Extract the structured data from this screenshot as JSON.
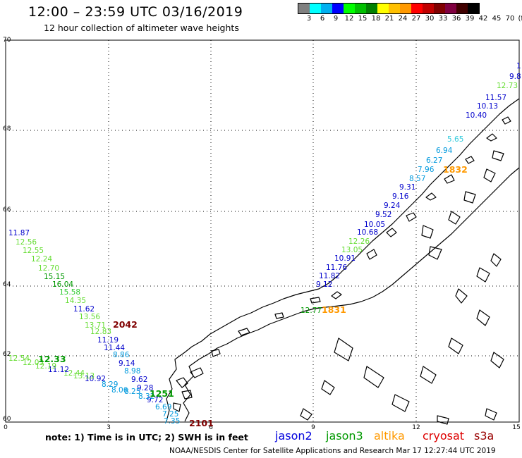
{
  "header": {
    "title": "12:00 – 23:59 UTC 03/16/2019",
    "subtitle": "12 hour collection of altimeter wave heights"
  },
  "color_scale": {
    "labels": [
      "3",
      "6",
      "9",
      "12",
      "15",
      "18",
      "21",
      "24",
      "27",
      "30",
      "33",
      "36",
      "39",
      "42",
      "45",
      "70",
      "(ft)"
    ],
    "colors": [
      "#808080",
      "#00ffff",
      "#00b0f0",
      "#0000ff",
      "#00ff00",
      "#00c000",
      "#008000",
      "#ffff00",
      "#ffc000",
      "#ff9900",
      "#ff0000",
      "#c00000",
      "#800000",
      "#800040",
      "#400000",
      "#000000"
    ]
  },
  "axes": {
    "lat_labels": [
      "70",
      "68",
      "66",
      "64",
      "62",
      "60"
    ],
    "lon_labels": [
      "0",
      "3",
      "6",
      "9",
      "12",
      "15"
    ]
  },
  "observations": [
    {
      "text": "11.87",
      "color": "#0000cc"
    },
    {
      "text": "12.56",
      "color": "#66dd33"
    },
    {
      "text": "12.55",
      "color": "#66dd33"
    },
    {
      "text": "12.24",
      "color": "#66dd33"
    },
    {
      "text": "12.70",
      "color": "#66dd33"
    },
    {
      "text": "15.15",
      "color": "#009900"
    },
    {
      "text": "16.04",
      "color": "#009900"
    },
    {
      "text": "15.58",
      "color": "#33cc33"
    },
    {
      "text": "14.35",
      "color": "#66dd33"
    },
    {
      "text": "11.62",
      "color": "#0000cc"
    },
    {
      "text": "13.56",
      "color": "#66dd33"
    },
    {
      "text": "13.71",
      "color": "#66dd33"
    },
    {
      "text": "2042",
      "color": "#800000"
    },
    {
      "text": "12.83",
      "color": "#66dd33"
    },
    {
      "text": "11.19",
      "color": "#0000cc"
    },
    {
      "text": "11.44",
      "color": "#0000cc"
    },
    {
      "text": "8.86",
      "color": "#0099dd"
    },
    {
      "text": "9.14",
      "color": "#0000cc"
    },
    {
      "text": "8.98",
      "color": "#0099dd"
    },
    {
      "text": "9.62",
      "color": "#0000cc"
    },
    {
      "text": "9.28",
      "color": "#0000cc"
    },
    {
      "text": "9.72",
      "color": "#0000cc"
    },
    {
      "text": "8.29",
      "color": "#0099dd"
    },
    {
      "text": "8.06",
      "color": "#0099dd"
    },
    {
      "text": "8.25",
      "color": "#0099dd"
    },
    {
      "text": "8.32",
      "color": "#0099dd"
    },
    {
      "text": "1251",
      "color": "#009900"
    },
    {
      "text": "6.69",
      "color": "#0099dd"
    },
    {
      "text": "7.25",
      "color": "#0099dd"
    },
    {
      "text": "7.35",
      "color": "#0099dd"
    },
    {
      "text": "2101",
      "color": "#800000"
    },
    {
      "text": "10.92",
      "color": "#0000cc"
    },
    {
      "text": "12.44",
      "color": "#66dd33"
    },
    {
      "text": "13.13",
      "color": "#66dd33"
    },
    {
      "text": "11.12",
      "color": "#0000cc"
    },
    {
      "text": "12.19",
      "color": "#66dd33"
    },
    {
      "text": "12.03",
      "color": "#66dd33"
    },
    {
      "text": "12.54",
      "color": "#66dd33"
    },
    {
      "text": "12.33",
      "color": "#009900"
    },
    {
      "text": "9.12",
      "color": "#0000cc"
    },
    {
      "text": "11.82",
      "color": "#0000cc"
    },
    {
      "text": "11.76",
      "color": "#0000cc"
    },
    {
      "text": "10.91",
      "color": "#0000cc"
    },
    {
      "text": "13.05",
      "color": "#66dd33"
    },
    {
      "text": "12.26",
      "color": "#66dd33"
    },
    {
      "text": "10.68",
      "color": "#0000cc"
    },
    {
      "text": "10.05",
      "color": "#0000cc"
    },
    {
      "text": "9.52",
      "color": "#0000cc"
    },
    {
      "text": "9.24",
      "color": "#0000cc"
    },
    {
      "text": "9.16",
      "color": "#0000cc"
    },
    {
      "text": "9.31",
      "color": "#0000cc"
    },
    {
      "text": "8.57",
      "color": "#0099dd"
    },
    {
      "text": "7.96",
      "color": "#0099dd"
    },
    {
      "text": "1832",
      "color": "#ff9900"
    },
    {
      "text": "6.27",
      "color": "#0099dd"
    },
    {
      "text": "6.94",
      "color": "#0099dd"
    },
    {
      "text": "5.65",
      "color": "#33ccdd"
    },
    {
      "text": "10.40",
      "color": "#0000cc"
    },
    {
      "text": "10.13",
      "color": "#0000cc"
    },
    {
      "text": "11.57",
      "color": "#0000cc"
    },
    {
      "text": "12.73",
      "color": "#66dd33"
    },
    {
      "text": "9.8",
      "color": "#0000cc"
    },
    {
      "text": "1",
      "color": "#0000cc"
    },
    {
      "text": "1831",
      "color": "#ff9900"
    },
    {
      "text": "12.77",
      "color": "#009900"
    }
  ],
  "footer": {
    "note": "note:  1) Time is in UTC;  2) SWH is in feet",
    "legend": [
      {
        "name": "jason2",
        "color": "#0000dd"
      },
      {
        "name": "jason3",
        "color": "#009900"
      },
      {
        "name": "altika",
        "color": "#ff9900"
      },
      {
        "name": "cryosat",
        "color": "#dd0000"
      },
      {
        "name": "s3a",
        "color": "#990000"
      }
    ],
    "credit": "NOAA/NESDIS Center for Satellite Applications and Research    Mar 17 12:27:44 UTC 2019"
  }
}
